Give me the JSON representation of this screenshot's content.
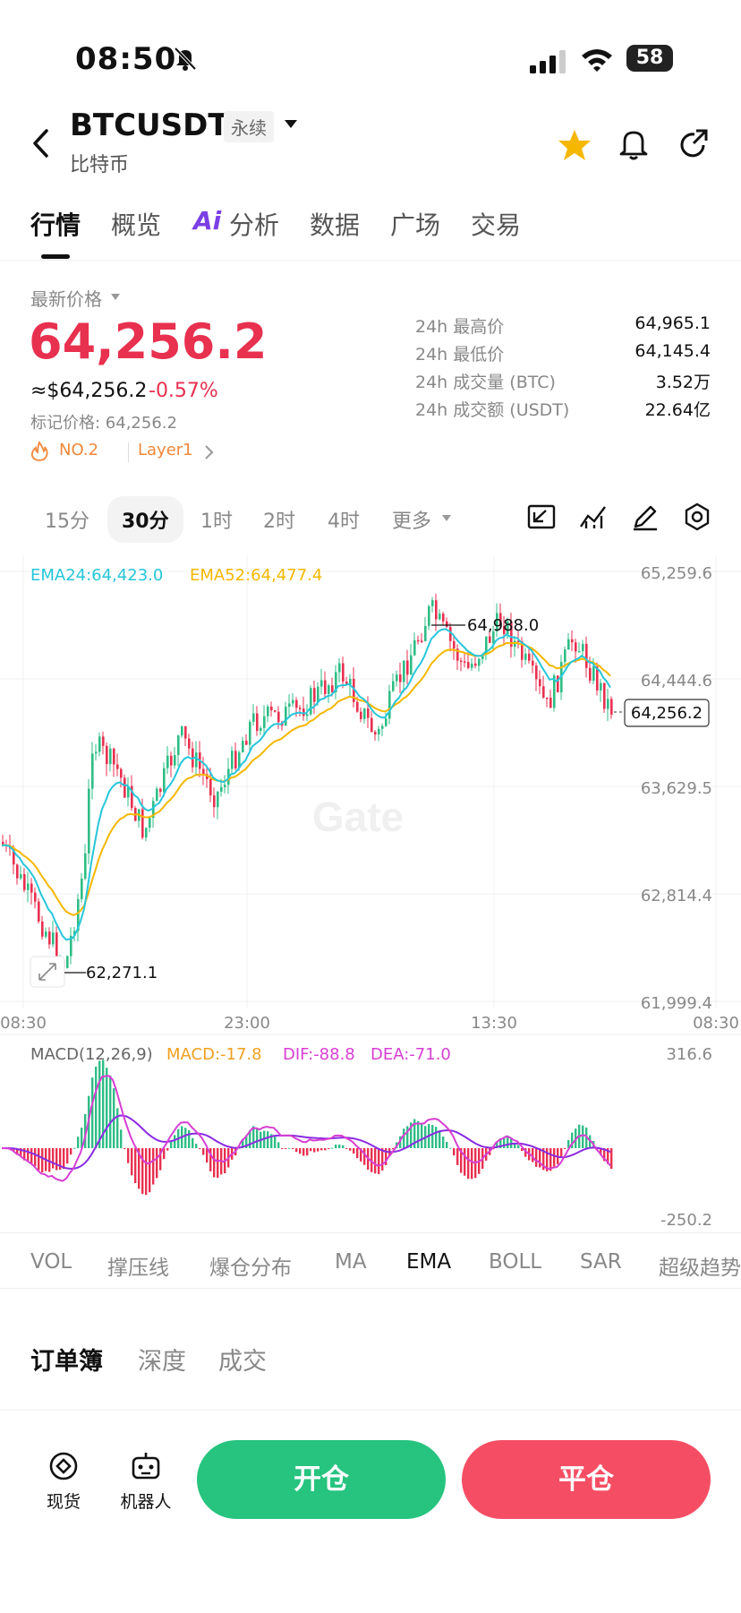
{
  "status_bar": {
    "time": "08:50",
    "battery": "58"
  },
  "header": {
    "symbol": "BTCUSDT",
    "contract_type": "永续",
    "name": "比特币"
  },
  "tabs": [
    {
      "label": "行情",
      "active": true
    },
    {
      "label": "概览"
    },
    {
      "label": "分析",
      "prefix": "Ai"
    },
    {
      "label": "数据"
    },
    {
      "label": "广场"
    },
    {
      "label": "交易"
    }
  ],
  "price_block": {
    "label": "最新价格",
    "last_price": "64,256.2",
    "usd_price": "≈$64,256.2",
    "change": "-0.57%",
    "mark_price": "标记价格: 64,256.2",
    "tags": [
      "NO.2",
      "Layer1"
    ],
    "stats": [
      {
        "label": "24h 最高价",
        "value": "64,965.1"
      },
      {
        "label": "24h 最低价",
        "value": "64,145.4"
      },
      {
        "label": "24h 成交量 (BTC)",
        "value": "3.52万"
      },
      {
        "label": "24h 成交额 (USDT)",
        "value": "22.64亿"
      }
    ]
  },
  "timeframes": [
    {
      "label": "15分"
    },
    {
      "label": "30分",
      "selected": true
    },
    {
      "label": "1时"
    },
    {
      "label": "2时"
    },
    {
      "label": "4时"
    },
    {
      "label": "更多"
    }
  ],
  "colors": {
    "up": "#2ebd85",
    "down": "#e8304f",
    "ema24": "#26c6da",
    "ema52": "#f5b700",
    "macd_dif": "#d63fd2",
    "accent_red": "#f54e64",
    "accent_green": "#26c47f"
  },
  "chart": {
    "ema24_label": "EMA24:64,423.0",
    "ema52_label": "EMA52:64,477.4",
    "y_ticks": [
      "65,259.6",
      "64,444.6",
      "63,629.5",
      "62,814.4",
      "61,999.4"
    ],
    "x_ticks": [
      "08:30",
      "23:00",
      "13:30",
      "08:30"
    ],
    "high_label": "64,988.0",
    "low_label": "62,271.1",
    "current_price": "64,256.2",
    "watermark": "Gate",
    "macd_label": "MACD(12,26,9)",
    "macd_value": "MACD:-17.8",
    "dif_value": "DIF:-88.8",
    "dea_value": "DEA:-71.0",
    "macd_top": "316.6",
    "macd_bottom": "-250.2"
  },
  "chart_data": {
    "type": "candlestick",
    "y_range": [
      61999.4,
      65259.6
    ],
    "x_ticks": [
      "08:30",
      "23:00",
      "13:30",
      "08:30"
    ],
    "series": [
      {
        "name": "EMA24",
        "value": 64423.0
      },
      {
        "name": "EMA52",
        "value": 64477.4
      }
    ],
    "annotations": {
      "high": 64988.0,
      "low": 62271.1,
      "last": 64256.2
    },
    "macd": {
      "macd": -17.8,
      "dif": -88.8,
      "dea": -71.0,
      "range": [
        -250.2,
        316.6
      ]
    }
  },
  "indicators": [
    "VOL",
    "撑压线",
    "爆仓分布",
    "MA",
    "EMA",
    "BOLL",
    "SAR",
    "超级趋势"
  ],
  "active_indicator": "EMA",
  "book_tabs": [
    "订单簿",
    "深度",
    "成交"
  ],
  "bottom_nav": {
    "spot": "现货",
    "bot": "机器人",
    "open": "开仓",
    "close": "平仓"
  }
}
